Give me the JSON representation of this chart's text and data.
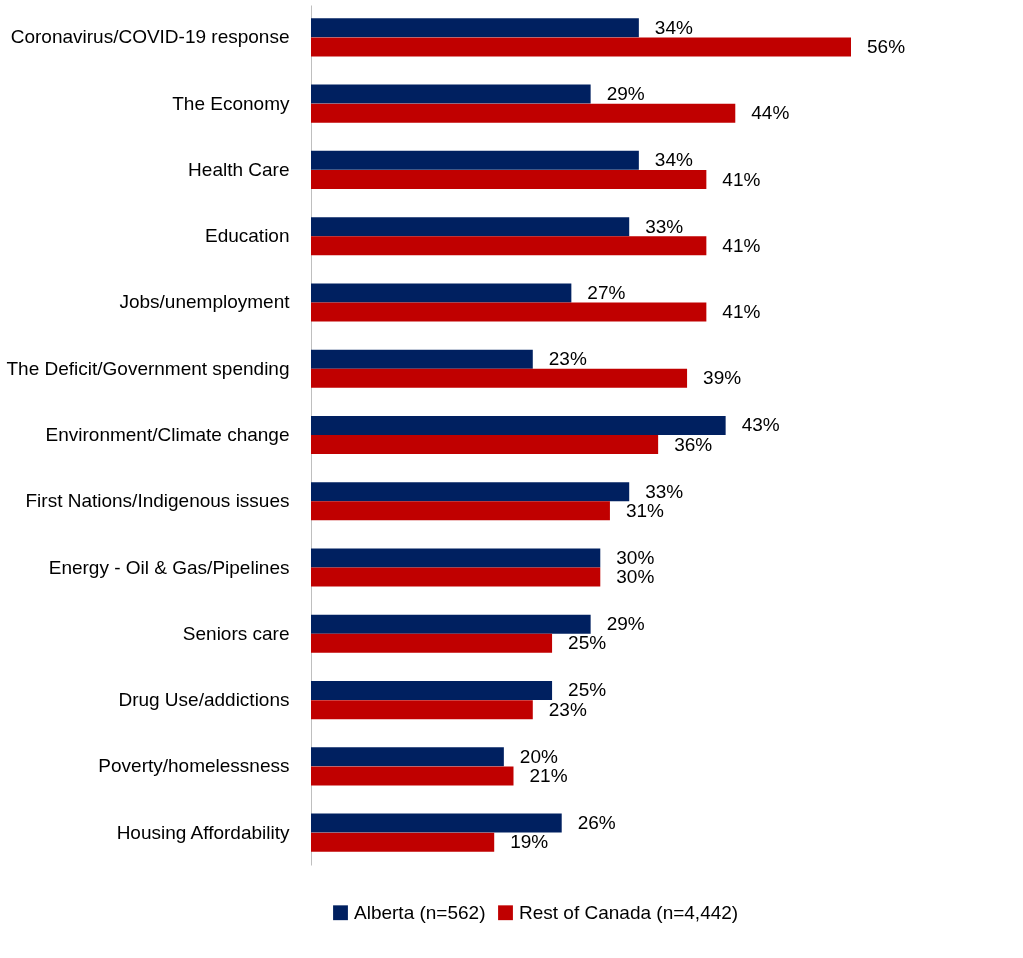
{
  "chart_data": {
    "type": "bar",
    "orientation": "horizontal",
    "categories": [
      "Coronavirus/COVID-19 response",
      "The Economy",
      "Health Care",
      "Education",
      "Jobs/unemployment",
      "The Deficit/Government spending",
      "Environment/Climate change",
      "First Nations/Indigenous issues",
      "Energy - Oil & Gas/Pipelines",
      "Seniors care",
      "Drug Use/addictions",
      "Poverty/homelessness",
      "Housing Affordability"
    ],
    "series": [
      {
        "name": "Alberta (n=562)",
        "color": "#002060",
        "values": [
          34,
          29,
          34,
          33,
          27,
          23,
          43,
          33,
          30,
          29,
          25,
          20,
          26
        ],
        "value_labels": [
          "34%",
          "29%",
          "34%",
          "33%",
          "27%",
          "23%",
          "43%",
          "33%",
          "30%",
          "29%",
          "25%",
          "20%",
          "26%"
        ]
      },
      {
        "name": "Rest of Canada (n=4,442)",
        "color": "#c00000",
        "values": [
          56,
          44,
          41,
          41,
          41,
          39,
          36,
          31,
          30,
          25,
          23,
          21,
          19
        ],
        "value_labels": [
          "56%",
          "44%",
          "41%",
          "41%",
          "41%",
          "39%",
          "36%",
          "31%",
          "30%",
          "25%",
          "23%",
          "21%",
          "19%"
        ]
      }
    ],
    "legend": "bottom"
  }
}
